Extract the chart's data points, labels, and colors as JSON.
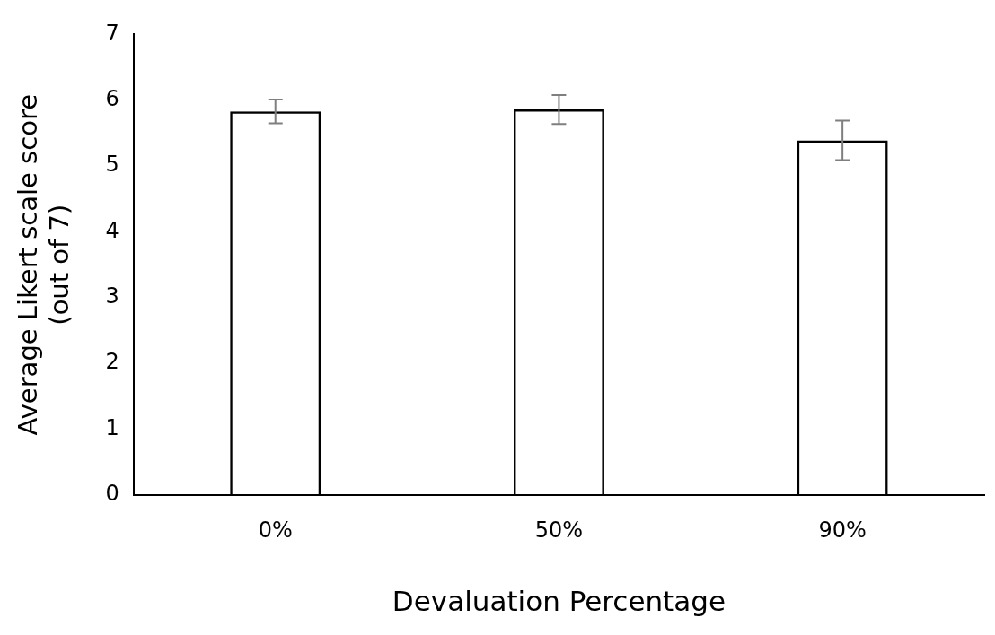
{
  "chart_data": {
    "type": "bar",
    "xlabel": "Devaluation Percentage",
    "ylabel": "Average Likert scale score\n(out of 7)",
    "categories": [
      "0%",
      "50%",
      "90%"
    ],
    "values": [
      5.83,
      5.86,
      5.39
    ],
    "errors": [
      0.18,
      0.22,
      0.3
    ],
    "color": "#000000",
    "ylim": [
      0,
      7
    ],
    "yticks": [
      0,
      1,
      2,
      3,
      4,
      5,
      6,
      7
    ],
    "grid": false,
    "legend": false
  }
}
